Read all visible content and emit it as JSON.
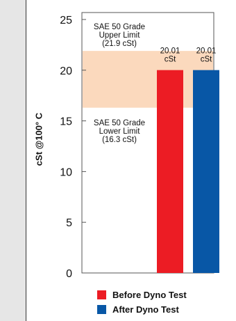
{
  "chart_data": {
    "type": "bar",
    "ylabel": "cSt @100° C",
    "ylim": [
      0,
      25
    ],
    "yticks": [
      "0",
      "5",
      "10",
      "15",
      "20",
      "25"
    ],
    "series": [
      {
        "name": "Before Dyno Test",
        "values": [
          20.01
        ],
        "color": "#ec1c24",
        "label": [
          "20.01",
          "cSt"
        ]
      },
      {
        "name": "After Dyno Test",
        "values": [
          20.01
        ],
        "color": "#0857a6",
        "label": [
          "20.01",
          "cSt"
        ]
      }
    ],
    "band": {
      "lower": 16.3,
      "upper": 21.9,
      "color": "#fbd9bd",
      "upper_label": [
        "SAE 50 Grade",
        "Upper Limit",
        "(21.9 cSt)"
      ],
      "lower_label": [
        "SAE 50 Grade",
        "Lower Limit",
        "(16.3 cSt)"
      ]
    },
    "legend_position": "bottom"
  }
}
